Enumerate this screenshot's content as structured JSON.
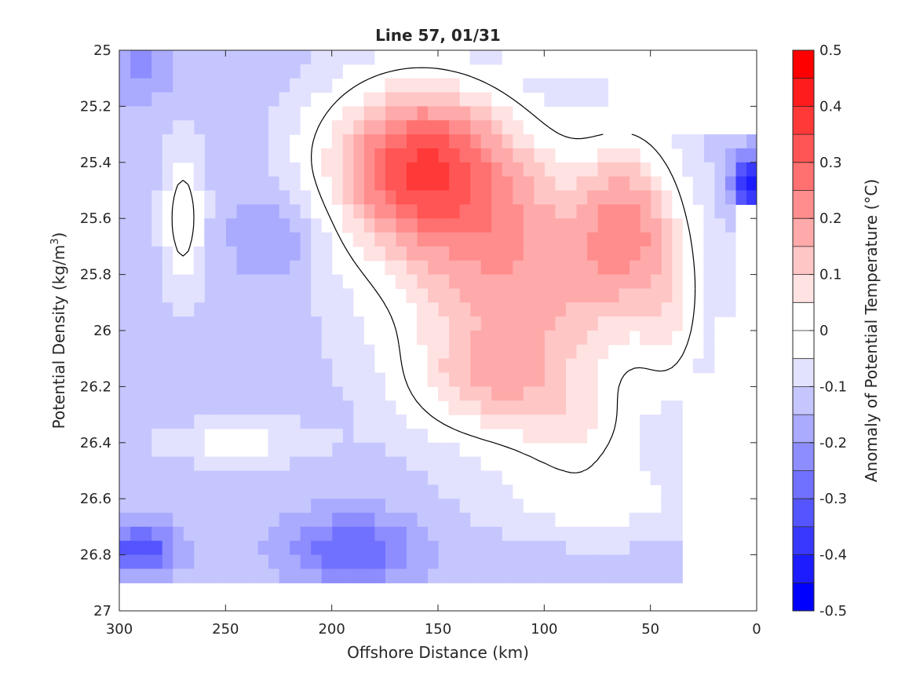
{
  "chart_data": {
    "type": "heatmap",
    "subtype": "filled-contour",
    "title": "Line 57, 01/31",
    "xlabel": "Offshore Distance (km)",
    "ylabel_main": "Potential Density (kg/m",
    "ylabel_sup": "3",
    "ylabel_close": ")",
    "colorbar_label": "Anomaly of Potential Temperature (°C)",
    "x_reversed": true,
    "xlim": [
      0,
      300
    ],
    "ylim": [
      25,
      27
    ],
    "y_reversed": true,
    "x_ticks": [
      300,
      250,
      200,
      150,
      100,
      50,
      0
    ],
    "x_tick_labels": [
      "300",
      "250",
      "200",
      "150",
      "100",
      "50",
      "0"
    ],
    "y_ticks": [
      25,
      25.2,
      25.4,
      25.6,
      25.8,
      26,
      26.2,
      26.4,
      26.6,
      26.8,
      27
    ],
    "y_tick_labels": [
      "25",
      "25.2",
      "25.4",
      "25.6",
      "25.8",
      "26",
      "26.2",
      "26.4",
      "26.6",
      "26.8",
      "27"
    ],
    "colorbar": {
      "min": -0.5,
      "max": 0.5,
      "levels": [
        -0.5,
        -0.45,
        -0.4,
        -0.35,
        -0.3,
        -0.25,
        -0.2,
        -0.15,
        -0.1,
        -0.05,
        0,
        0.05,
        0.1,
        0.15,
        0.2,
        0.25,
        0.3,
        0.35,
        0.4,
        0.45,
        0.5
      ],
      "tick_values": [
        0.5,
        0.4,
        0.3,
        0.2,
        0.1,
        0,
        -0.1,
        -0.2,
        -0.3,
        -0.4,
        -0.5
      ],
      "tick_labels": [
        "0.5",
        "0.4",
        "0.3",
        "0.2",
        "0.1",
        "0",
        "-0.1",
        "-0.2",
        "-0.3",
        "-0.4",
        "-0.5"
      ],
      "colors": [
        "#0000ff",
        "#1c1cff",
        "#3838ff",
        "#5555ff",
        "#7171ff",
        "#8d8dff",
        "#aaaaff",
        "#c6c6ff",
        "#e2e2ff",
        "#ffffff",
        "#ffffff",
        "#ffe2e2",
        "#ffc6c6",
        "#ffaaaa",
        "#ff8d8d",
        "#ff7171",
        "#ff5555",
        "#ff3838",
        "#ff1c1c",
        "#ff0000"
      ]
    },
    "zero_contour_color": "#000000"
  }
}
